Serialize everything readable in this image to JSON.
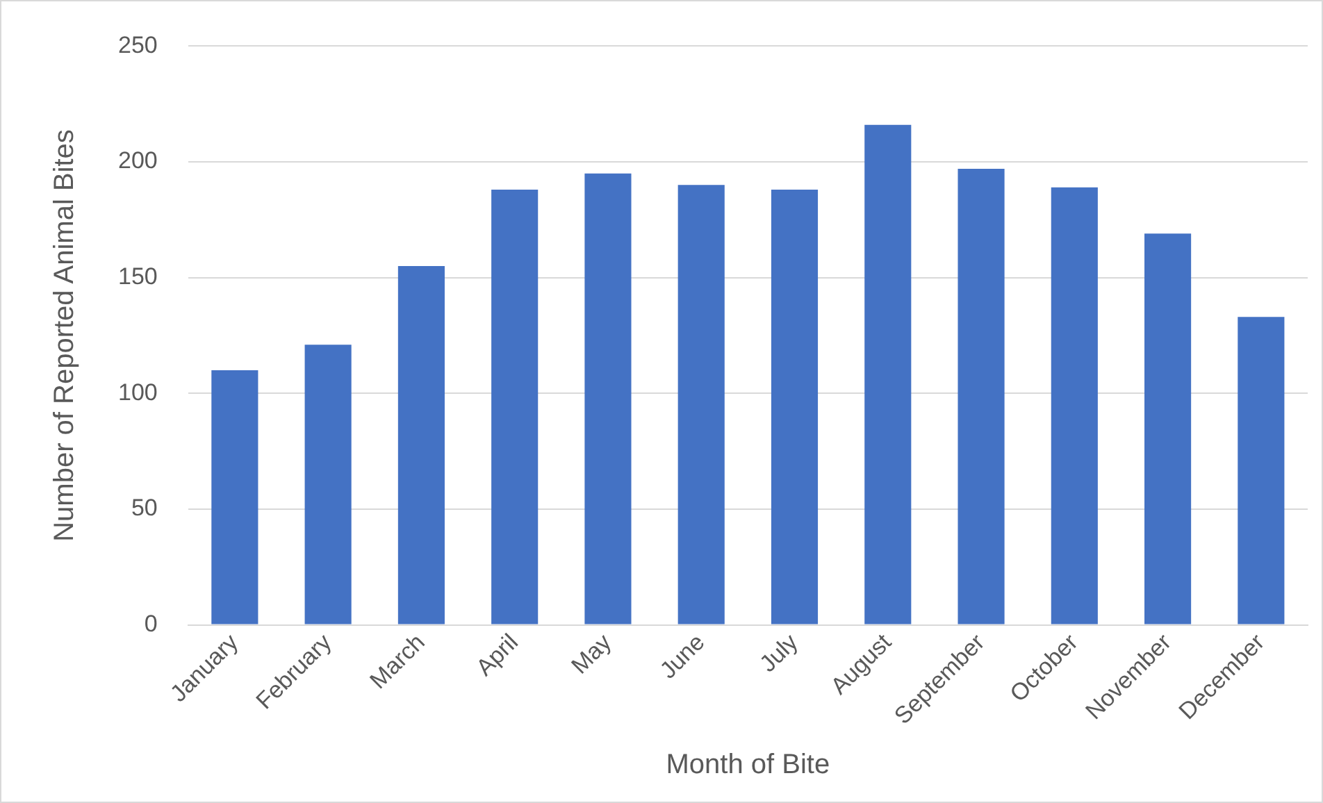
{
  "chart_data": {
    "type": "bar",
    "xlabel": "Month of Bite",
    "ylabel": "Number of Reported Animal Bites",
    "categories": [
      "January",
      "February",
      "March",
      "April",
      "May",
      "June",
      "July",
      "August",
      "September",
      "October",
      "November",
      "December"
    ],
    "values": [
      110,
      121,
      155,
      188,
      195,
      190,
      188,
      216,
      197,
      189,
      169,
      133
    ],
    "color": "#4472c4",
    "ylim": [
      0,
      250
    ],
    "yticks": [
      0,
      50,
      100,
      150,
      200,
      250
    ],
    "grid": "y"
  }
}
